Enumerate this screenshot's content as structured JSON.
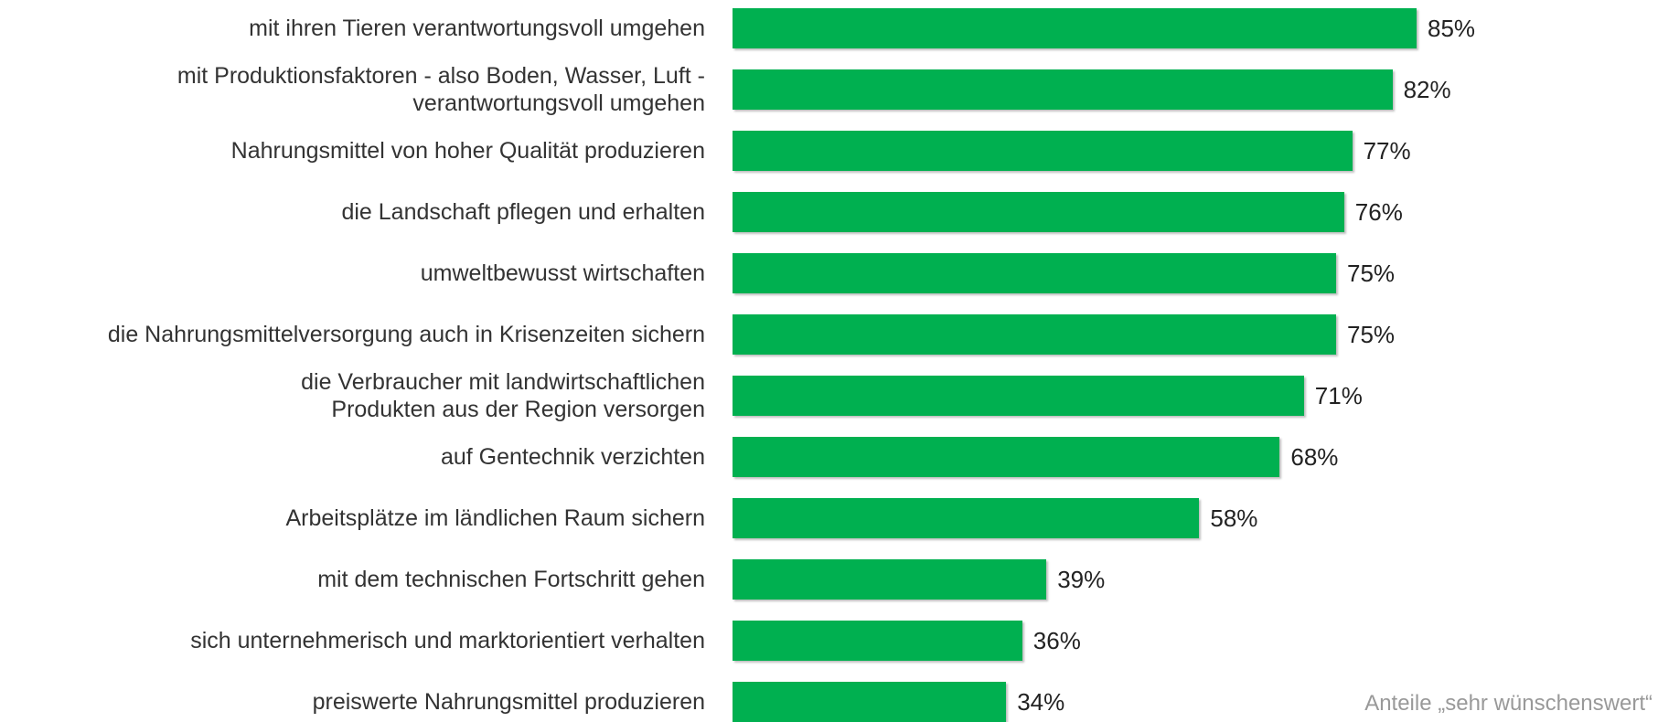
{
  "chart_data": {
    "type": "bar",
    "orientation": "horizontal",
    "categories": [
      "mit ihren Tieren verantwortungsvoll umgehen",
      "mit Produktionsfaktoren - also Boden, Wasser, Luft -\nverantwortungsvoll umgehen",
      "Nahrungsmittel von hoher Qualität produzieren",
      "die Landschaft pflegen und erhalten",
      "umweltbewusst wirtschaften",
      "die Nahrungsmittelversorgung auch in Krisenzeiten sichern",
      "die Verbraucher mit landwirtschaftlichen\nProdukten aus der Region versorgen",
      "auf Gentechnik verzichten",
      "Arbeitsplätze im ländlichen Raum sichern",
      "mit dem technischen Fortschritt gehen",
      "sich unternehmerisch und marktorientiert verhalten",
      "preiswerte Nahrungsmittel produzieren"
    ],
    "values": [
      85,
      82,
      77,
      76,
      75,
      75,
      71,
      68,
      58,
      39,
      36,
      34
    ],
    "value_labels": [
      "85%",
      "82%",
      "77%",
      "76%",
      "75%",
      "75%",
      "71%",
      "68%",
      "58%",
      "39%",
      "36%",
      "34%"
    ],
    "color": "#00b050",
    "note": "Anteile „sehr wünschenswert“"
  }
}
